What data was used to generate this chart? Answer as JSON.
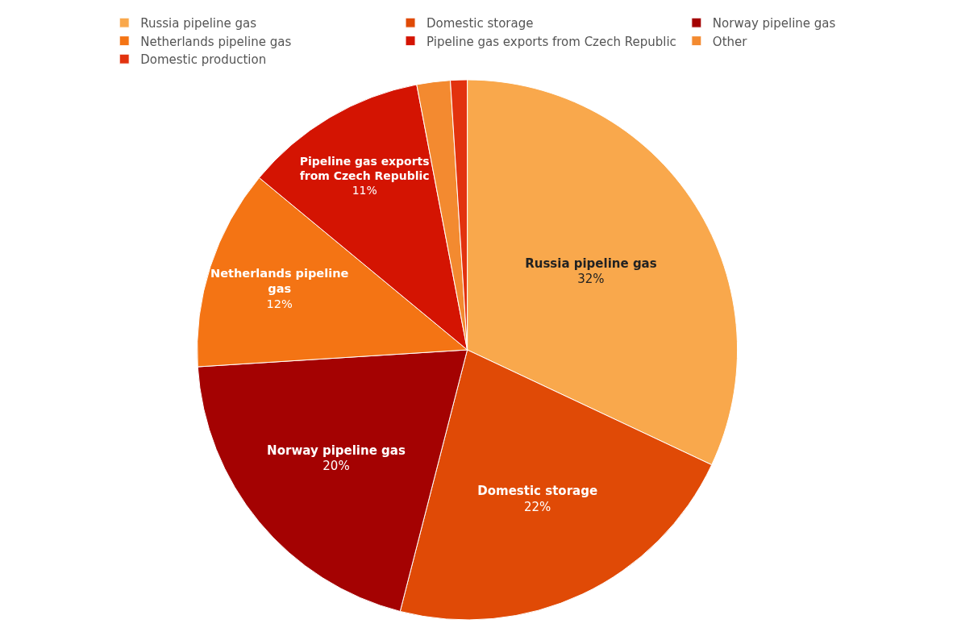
{
  "chart_data": {
    "type": "pie",
    "categories": [
      "Russia pipeline gas",
      "Domestic storage",
      "Norway pipeline gas",
      "Netherlands pipeline gas",
      "Pipeline gas exports from Czech Republic",
      "Other",
      "Domestic production"
    ],
    "values": [
      32,
      22,
      20,
      12,
      11,
      2,
      1
    ],
    "value_labels": [
      "32%",
      "22%",
      "20%",
      "12%",
      "11%",
      null,
      null
    ],
    "colors": [
      "#f9a84c",
      "#e04a06",
      "#a40202",
      "#f47414",
      "#d41402",
      "#f38a30",
      "#e2320e"
    ],
    "legend": "top left"
  }
}
